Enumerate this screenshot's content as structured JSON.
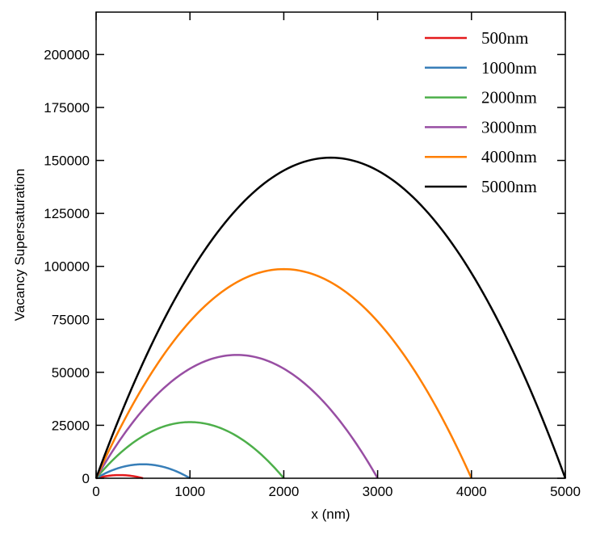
{
  "chart_data": {
    "type": "line",
    "xlabel": "x (nm)",
    "ylabel": "Vacancy Supersaturation",
    "xlim": [
      0,
      5000
    ],
    "ylim": [
      0,
      220000
    ],
    "xticks": [
      "0",
      "1000",
      "2000",
      "3000",
      "4000",
      "5000"
    ],
    "yticks": [
      "0",
      "25000",
      "50000",
      "75000",
      "100000",
      "125000",
      "150000",
      "175000",
      "200000"
    ],
    "grid": false,
    "legend_position": "top-right",
    "series": [
      {
        "name": "500nm",
        "length": 500,
        "peak": 1500,
        "color": "#e41a1c"
      },
      {
        "name": "1000nm",
        "length": 1000,
        "peak": 6600,
        "color": "#377eb8"
      },
      {
        "name": "2000nm",
        "length": 2000,
        "peak": 26500,
        "color": "#4daf4a"
      },
      {
        "name": "3000nm",
        "length": 3000,
        "peak": 58200,
        "color": "#984ea3"
      },
      {
        "name": "4000nm",
        "length": 4000,
        "peak": 98700,
        "color": "#ff7f00"
      },
      {
        "name": "5000nm",
        "length": 5000,
        "peak": 151300,
        "color": "#000000"
      }
    ]
  }
}
